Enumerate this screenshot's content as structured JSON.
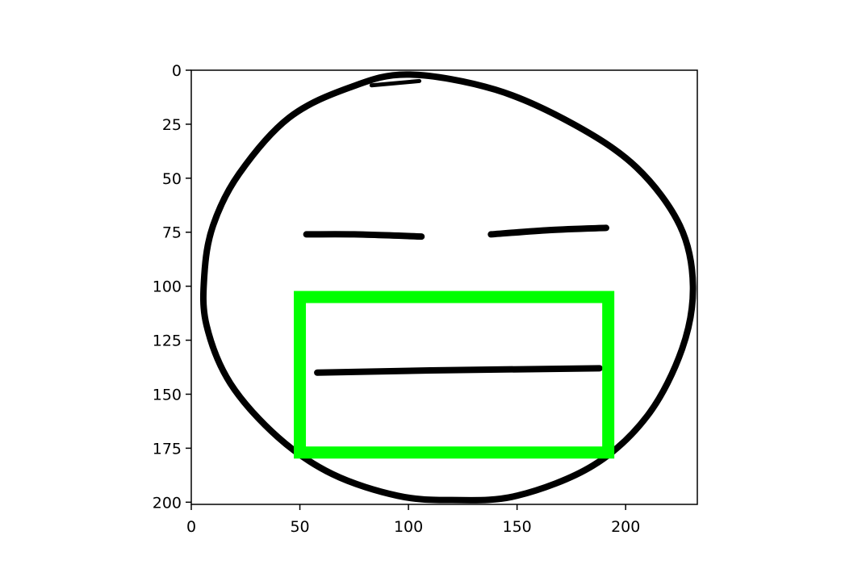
{
  "chart_data": {
    "type": "image",
    "title": "",
    "xlabel": "",
    "ylabel": "",
    "xlim": [
      0,
      233
    ],
    "ylim": [
      201,
      0
    ],
    "xticks": [
      0,
      50,
      100,
      150,
      200
    ],
    "yticks": [
      0,
      25,
      50,
      75,
      100,
      125,
      150,
      175,
      200
    ],
    "grid": false,
    "image_content": "hand-drawn-neutral-face",
    "bounding_box": {
      "x_min": 50,
      "y_min": 105,
      "x_max": 192,
      "y_max": 177,
      "color": "#00ff00"
    },
    "face_strokes": {
      "outline": [
        [
          100,
          2
        ],
        [
          140,
          9
        ],
        [
          176,
          25
        ],
        [
          205,
          45
        ],
        [
          225,
          72
        ],
        [
          231,
          100
        ],
        [
          226,
          129
        ],
        [
          210,
          160
        ],
        [
          185,
          183
        ],
        [
          150,
          197
        ],
        [
          120,
          199
        ],
        [
          95,
          197
        ],
        [
          65,
          187
        ],
        [
          40,
          170
        ],
        [
          18,
          145
        ],
        [
          7,
          118
        ],
        [
          6,
          95
        ],
        [
          10,
          72
        ],
        [
          22,
          48
        ],
        [
          45,
          22
        ],
        [
          73,
          8
        ],
        [
          100,
          2
        ]
      ],
      "top_flick": [
        [
          83,
          7
        ],
        [
          105,
          5
        ]
      ],
      "left_eye": [
        [
          53,
          76
        ],
        [
          75,
          76
        ],
        [
          106,
          77
        ]
      ],
      "right_eye": [
        [
          138,
          76
        ],
        [
          165,
          74
        ],
        [
          191,
          73
        ]
      ],
      "mouth": [
        [
          58,
          140
        ],
        [
          110,
          139
        ],
        [
          188,
          138
        ]
      ]
    }
  }
}
